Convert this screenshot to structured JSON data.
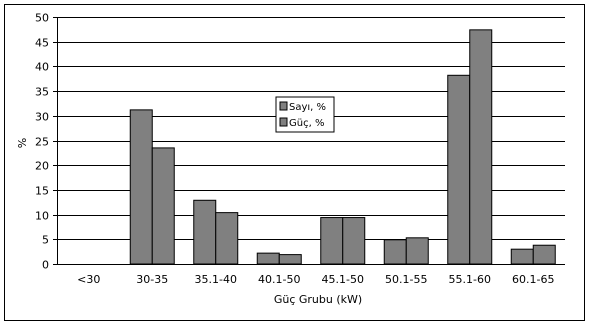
{
  "chart_data": {
    "type": "bar",
    "categories": [
      "<30",
      "30-35",
      "35.1-40",
      "40.1-50",
      "45.1-50",
      "50.1-55",
      "55.1-60",
      "60.1-65"
    ],
    "series": [
      {
        "name": "Sayı, %",
        "values": [
          0,
          31.2,
          12.9,
          2.2,
          9.4,
          4.9,
          38.2,
          3.0
        ]
      },
      {
        "name": "Güç, %",
        "values": [
          0,
          23.5,
          10.4,
          1.9,
          9.4,
          5.3,
          47.4,
          3.8
        ]
      }
    ],
    "xlabel": "Güç Grubu (kW)",
    "ylabel": "%",
    "ylim": [
      0,
      50
    ],
    "ytick_step": 5,
    "grid": true,
    "legend_position": "center-top",
    "colors": {
      "bar_fill": "#808080",
      "bar_stroke": "#000000",
      "gridline": "#000000",
      "background": "#ffffff"
    }
  }
}
